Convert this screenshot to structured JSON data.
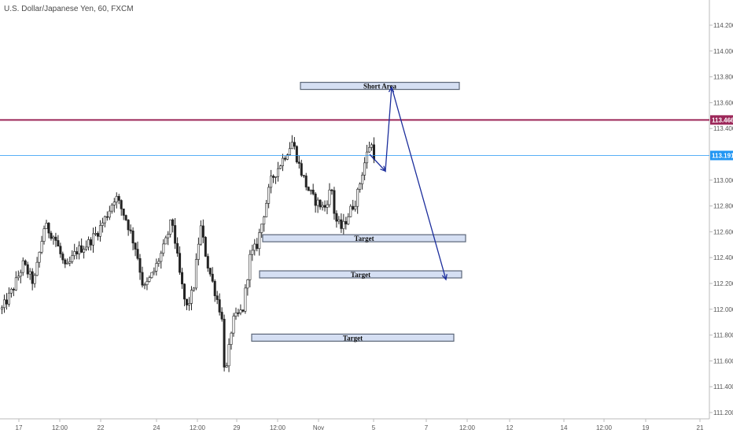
{
  "chart_data": {
    "type": "candlestick",
    "title": "U.S. Dollar/Japanese Yen, 60, FXCM",
    "ylim": [
      111.1,
      114.5
    ],
    "y_ticks": [
      "114.200",
      "114.000",
      "113.800",
      "113.600",
      "113.400",
      "113.000",
      "112.800",
      "112.600",
      "112.400",
      "112.200",
      "112.000",
      "111.800",
      "111.600",
      "111.400",
      "111.200"
    ],
    "y_tick_values": [
      114.2,
      114.0,
      113.8,
      113.6,
      113.4,
      113.0,
      112.8,
      112.6,
      112.4,
      112.2,
      112.0,
      111.8,
      111.6,
      111.4,
      111.2
    ],
    "x_ticks": [
      "17",
      "12:00",
      "22",
      "24",
      "12:00",
      "29",
      "12:00",
      "Nov",
      "5",
      "7",
      "12:00",
      "12",
      "14",
      "12:00",
      "19",
      "21"
    ],
    "price_path": [
      {
        "x": 0,
        "y": 112.0
      },
      {
        "x": 0.015,
        "y": 112.15
      },
      {
        "x": 0.03,
        "y": 112.35
      },
      {
        "x": 0.045,
        "y": 112.2
      },
      {
        "x": 0.06,
        "y": 112.65
      },
      {
        "x": 0.075,
        "y": 112.55
      },
      {
        "x": 0.09,
        "y": 112.3
      },
      {
        "x": 0.105,
        "y": 112.45
      },
      {
        "x": 0.12,
        "y": 112.5
      },
      {
        "x": 0.135,
        "y": 112.6
      },
      {
        "x": 0.15,
        "y": 112.75
      },
      {
        "x": 0.16,
        "y": 112.88
      },
      {
        "x": 0.175,
        "y": 112.7
      },
      {
        "x": 0.19,
        "y": 112.45
      },
      {
        "x": 0.2,
        "y": 112.15
      },
      {
        "x": 0.215,
        "y": 112.3
      },
      {
        "x": 0.23,
        "y": 112.5
      },
      {
        "x": 0.24,
        "y": 112.7
      },
      {
        "x": 0.25,
        "y": 112.3
      },
      {
        "x": 0.26,
        "y": 112.0
      },
      {
        "x": 0.27,
        "y": 112.15
      },
      {
        "x": 0.28,
        "y": 112.65
      },
      {
        "x": 0.29,
        "y": 112.35
      },
      {
        "x": 0.3,
        "y": 112.15
      },
      {
        "x": 0.31,
        "y": 111.95
      },
      {
        "x": 0.315,
        "y": 111.45
      },
      {
        "x": 0.325,
        "y": 111.9
      },
      {
        "x": 0.34,
        "y": 112.0
      },
      {
        "x": 0.35,
        "y": 112.4
      },
      {
        "x": 0.36,
        "y": 112.5
      },
      {
        "x": 0.37,
        "y": 112.75
      },
      {
        "x": 0.38,
        "y": 113.0
      },
      {
        "x": 0.395,
        "y": 113.15
      },
      {
        "x": 0.41,
        "y": 113.3
      },
      {
        "x": 0.42,
        "y": 113.1
      },
      {
        "x": 0.43,
        "y": 112.95
      },
      {
        "x": 0.44,
        "y": 112.85
      },
      {
        "x": 0.455,
        "y": 112.78
      },
      {
        "x": 0.465,
        "y": 112.95
      },
      {
        "x": 0.47,
        "y": 112.7
      },
      {
        "x": 0.48,
        "y": 112.62
      },
      {
        "x": 0.49,
        "y": 112.75
      },
      {
        "x": 0.5,
        "y": 112.85
      },
      {
        "x": 0.51,
        "y": 113.1
      },
      {
        "x": 0.52,
        "y": 113.3
      },
      {
        "x": 0.525,
        "y": 113.2
      }
    ],
    "last_price": "113.191",
    "horizontal_lines": [
      {
        "value": 113.466,
        "color": "#9c2759",
        "label": "113.466"
      },
      {
        "value": 113.191,
        "color": "#2196f3",
        "label": "113.191"
      }
    ],
    "zones": [
      {
        "label": "Short Area",
        "y": 113.73
      },
      {
        "label": "Target",
        "y": 112.55
      },
      {
        "label": "Target",
        "y": 112.27
      },
      {
        "label": "Target",
        "y": 111.78
      }
    ],
    "projection_path": [
      {
        "y": 113.2
      },
      {
        "y": 113.07
      },
      {
        "y": 113.72
      },
      {
        "y": 112.23
      }
    ],
    "colors": {
      "up": "#ffffff",
      "down": "#222222",
      "wick": "#222222",
      "zone_fill": "#d5dff3",
      "zone_stroke": "#5b6678",
      "arrow": "#1c2e9c"
    }
  }
}
